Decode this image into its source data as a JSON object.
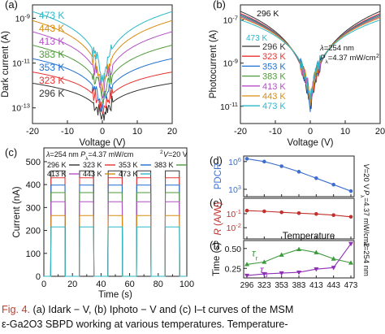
{
  "caption": {
    "fig_label": "Fig. 4.",
    "line1": "(a) Idark − V, (b) Iphoto − V and (c) I–t curves of the MSM",
    "line2": "ε-Ga2O3 SBPD working at various temperatures. Temperature-"
  },
  "colors": {
    "296 K": "#333333",
    "323 K": "#e8312f",
    "353 K": "#1f6fd1",
    "383 K": "#4f9a3a",
    "413 K": "#b44fc7",
    "443 K": "#d98c10",
    "473 K": "#2bb7c9"
  },
  "chart_data": [
    {
      "id": "a",
      "panel_label": "(a)",
      "type": "line",
      "xlabel": "Voltage (V)",
      "ylabel": "Dark current (A)",
      "xlim": [
        -20,
        20
      ],
      "xticks": [
        -20,
        -10,
        0,
        10,
        20
      ],
      "ylim_log10": [
        -13.7,
        -8.4
      ],
      "yscale": "log",
      "yticks": [
        {
          "exp": -9,
          "label": "10-9"
        },
        {
          "exp": -11,
          "label": "10-11"
        },
        {
          "exp": -13,
          "label": "10-13"
        }
      ],
      "legend": [
        "473 K",
        "443 K",
        "413 K",
        "383 K",
        "353 K",
        "323 K",
        "296 K"
      ],
      "legend_placement": "left",
      "series": [
        {
          "name": "296 K",
          "log10_at_20V": -11.9,
          "log10_min": -13.5
        },
        {
          "name": "323 K",
          "log10_at_20V": -11.4,
          "log10_min": -13.2
        },
        {
          "name": "353 K",
          "log10_at_20V": -10.8,
          "log10_min": -13.0
        },
        {
          "name": "383 K",
          "log10_at_20V": -10.2,
          "log10_min": -12.7
        },
        {
          "name": "413 K",
          "log10_at_20V": -9.6,
          "log10_min": -12.4
        },
        {
          "name": "443 K",
          "log10_at_20V": -9.1,
          "log10_min": -12.1
        },
        {
          "name": "473 K",
          "log10_at_20V": -8.7,
          "log10_min": -11.8
        }
      ]
    },
    {
      "id": "b",
      "panel_label": "(b)",
      "type": "line",
      "xlabel": "Voltage (V)",
      "ylabel": "Photocurrent (A)",
      "xlim": [
        -20,
        20
      ],
      "xticks": [
        -20,
        -10,
        0,
        10,
        20
      ],
      "ylim_log10": [
        -11.8,
        -6.3
      ],
      "yscale": "log",
      "yticks": [
        {
          "exp": -7,
          "label": "10-7"
        },
        {
          "exp": -9,
          "label": "10-9"
        },
        {
          "exp": -11,
          "label": "10-11"
        }
      ],
      "annotations": [
        "296 K",
        "473 K",
        "λ=254 nm",
        "Pλ=4.37 mW/cm2"
      ],
      "legend": [
        "296 K",
        "323 K",
        "353 K",
        "383 K",
        "413 K",
        "443 K",
        "473 K"
      ],
      "legend_placement": "bottom-left",
      "series": [
        {
          "name": "296 K",
          "log10_at_20V": -6.6,
          "log10_min": -11.2
        },
        {
          "name": "323 K",
          "log10_at_20V": -6.7,
          "log10_min": -11.1
        },
        {
          "name": "353 K",
          "log10_at_20V": -6.75,
          "log10_min": -11.0
        },
        {
          "name": "383 K",
          "log10_at_20V": -6.8,
          "log10_min": -10.9
        },
        {
          "name": "413 K",
          "log10_at_20V": -6.85,
          "log10_min": -10.8
        },
        {
          "name": "443 K",
          "log10_at_20V": -6.9,
          "log10_min": -10.7
        },
        {
          "name": "473 K",
          "log10_at_20V": -7.0,
          "log10_min": -10.6
        }
      ]
    },
    {
      "id": "c",
      "panel_label": "(c)",
      "type": "line",
      "xlabel": "Time (s)",
      "ylabel": "Current (nA)",
      "xlim": [
        0,
        100
      ],
      "ylim": [
        0,
        560
      ],
      "xticks": [
        0,
        10,
        20,
        30,
        40,
        50,
        60,
        70,
        80,
        90,
        100
      ],
      "yticks": [
        0,
        100,
        200,
        300,
        400,
        500
      ],
      "conditions": [
        "λ=254 nm",
        "Pλ=4.37 mW/cm2",
        "V=20 V"
      ],
      "legend": [
        "296 K",
        "323 K",
        "353 K",
        "383 K",
        "413 K",
        "443 K",
        "473 K"
      ],
      "on_intervals": [
        [
          5,
          15
        ],
        [
          25,
          35
        ],
        [
          45,
          55
        ],
        [
          65,
          75
        ],
        [
          85,
          95
        ]
      ],
      "series": [
        {
          "name": "296 K",
          "on_value": 460,
          "off_value": 0
        },
        {
          "name": "323 K",
          "on_value": 430,
          "off_value": 0
        },
        {
          "name": "353 K",
          "on_value": 398,
          "off_value": 0
        },
        {
          "name": "383 K",
          "on_value": 365,
          "off_value": 0
        },
        {
          "name": "413 K",
          "on_value": 325,
          "off_value": 0
        },
        {
          "name": "443 K",
          "on_value": 265,
          "off_value": 0
        },
        {
          "name": "473 K",
          "on_value": 215,
          "off_value": 0
        }
      ]
    },
    {
      "id": "d",
      "panel_label": "(d)",
      "type": "line",
      "ylabel": "PDCR",
      "yscale": "log",
      "ylim_log10": [
        2.2,
        6.6
      ],
      "yticks": [
        {
          "exp": 3,
          "label": "103"
        },
        {
          "exp": 6,
          "label": "106"
        }
      ],
      "side_label": "V=20 V",
      "categories": [
        296,
        323,
        353,
        383,
        413,
        443,
        473
      ],
      "series": [
        {
          "name": "PDCR",
          "color": "#3e6fd0",
          "log10_values": [
            6.3,
            6.0,
            5.5,
            4.9,
            4.2,
            3.5,
            2.8
          ]
        }
      ]
    },
    {
      "id": "e",
      "panel_label": "(e)",
      "type": "line",
      "ylabel": "R (A/W)",
      "yscale": "log",
      "ylim_log10": [
        -2.8,
        0.1
      ],
      "yticks": [
        {
          "exp": -1,
          "label": "10-1"
        },
        {
          "exp": -2,
          "label": "10-2"
        }
      ],
      "side_label": "Pλ=4.37 mW/cm2",
      "categories": [
        296,
        323,
        353,
        383,
        413,
        443,
        473
      ],
      "series": [
        {
          "name": "R",
          "color": "#c0302c",
          "log10_values": [
            -0.78,
            -0.83,
            -0.9,
            -0.96,
            -1.02,
            -1.1,
            -1.22
          ]
        }
      ]
    },
    {
      "id": "f",
      "panel_label": "(f)",
      "type": "line",
      "xlabel": "Temperature",
      "ylabel": "Time (s)",
      "ylim": [
        0.13,
        0.6
      ],
      "yticks": [
        0.25,
        0.5
      ],
      "ytick_labels": [
        "0.25",
        "0.50"
      ],
      "side_label": "λ=254 nm",
      "categories": [
        296,
        323,
        353,
        383,
        413,
        443,
        473
      ],
      "series": [
        {
          "name": "τr",
          "color": "#3c9a3c",
          "values": [
            0.3,
            0.33,
            0.42,
            0.49,
            0.45,
            0.37,
            0.32
          ]
        },
        {
          "name": "τd",
          "color": "#8e2fb5",
          "values": [
            0.16,
            0.18,
            0.19,
            0.2,
            0.24,
            0.26,
            0.56
          ]
        }
      ]
    }
  ]
}
